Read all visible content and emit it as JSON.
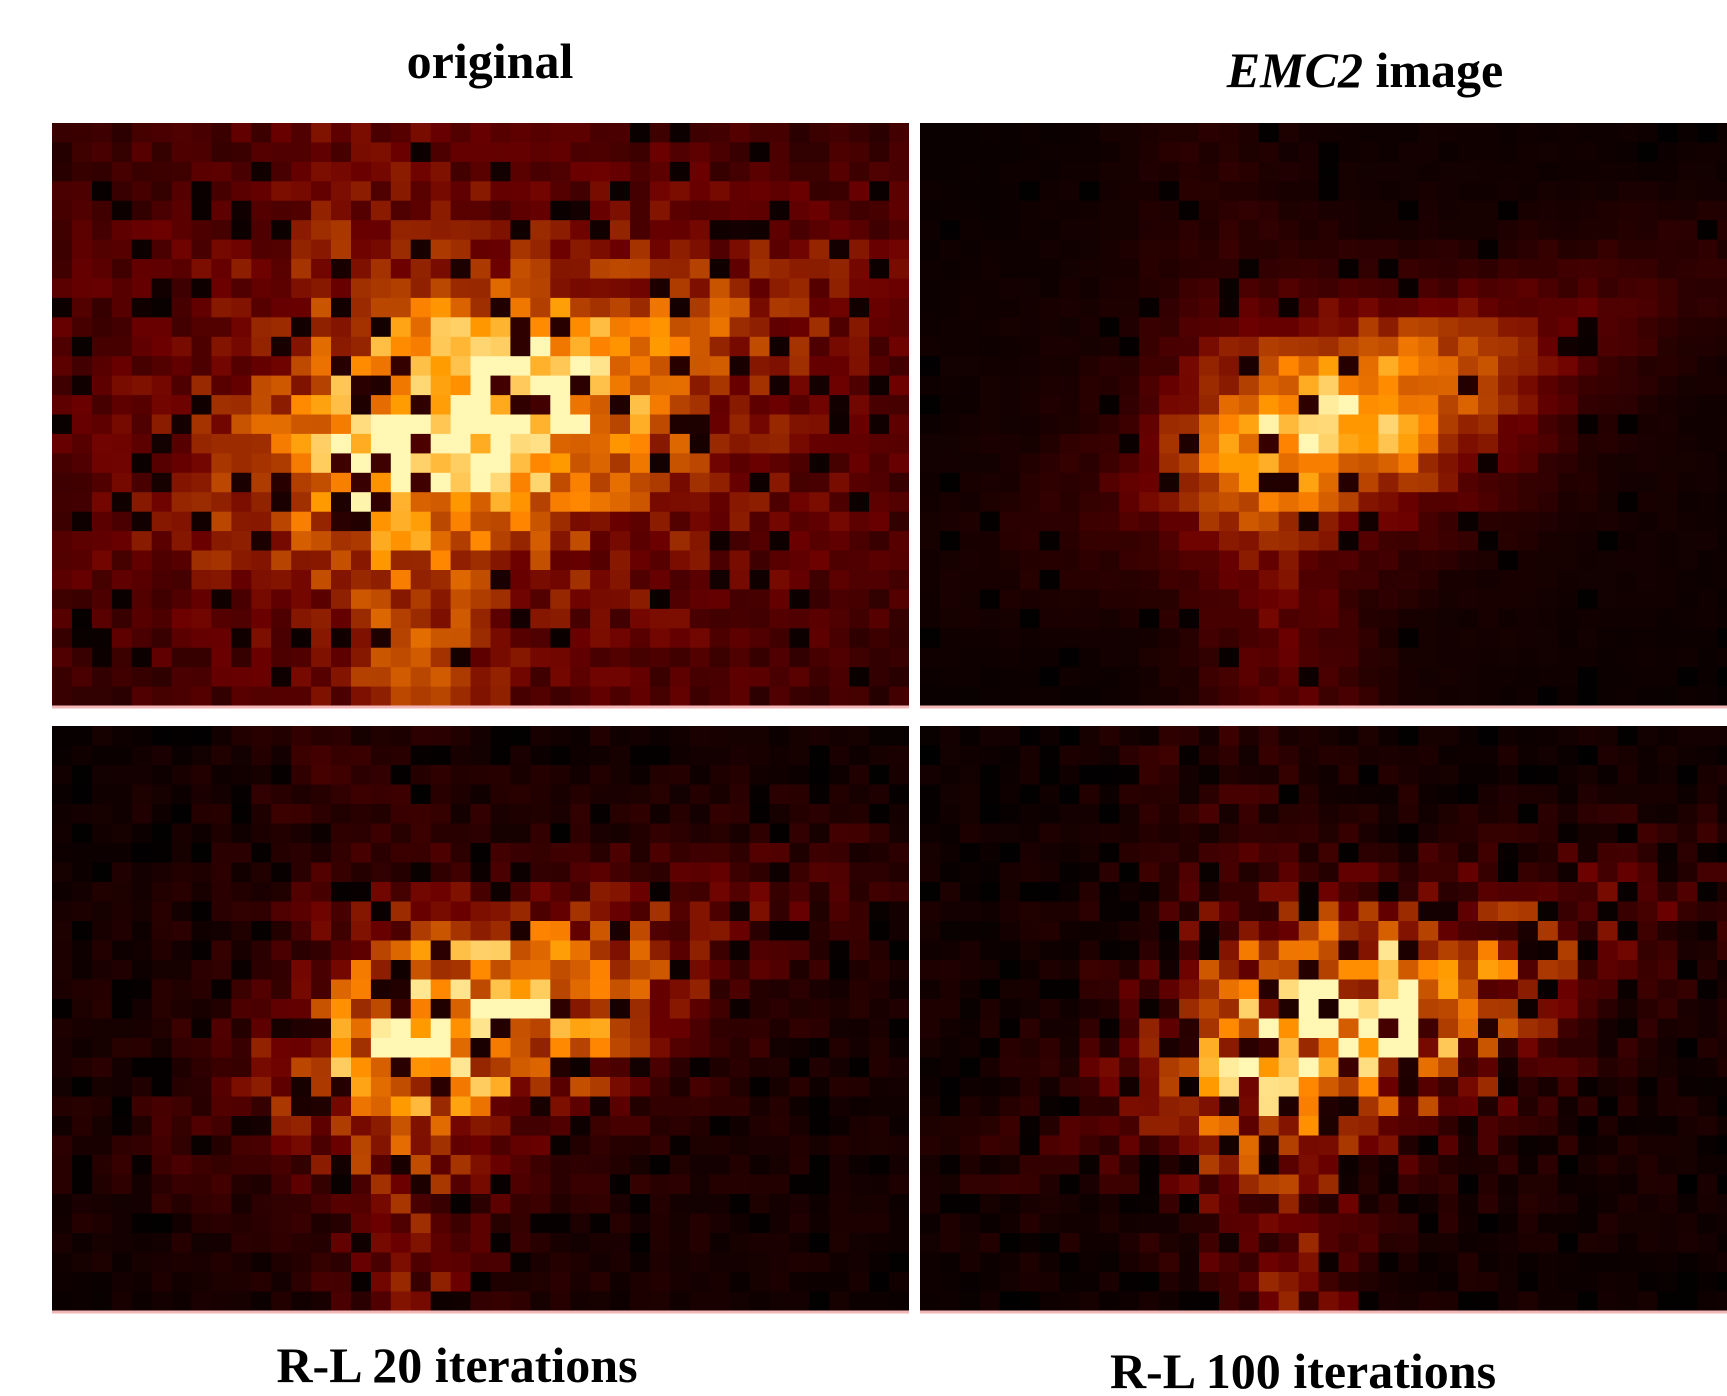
{
  "figure": {
    "panels": [
      {
        "label": "original"
      },
      {
        "label_emphasis": "EMC2",
        "label": "image"
      },
      {
        "label": "R-L 20 iterations"
      },
      {
        "label": "R-L 100 iterations"
      }
    ]
  }
}
